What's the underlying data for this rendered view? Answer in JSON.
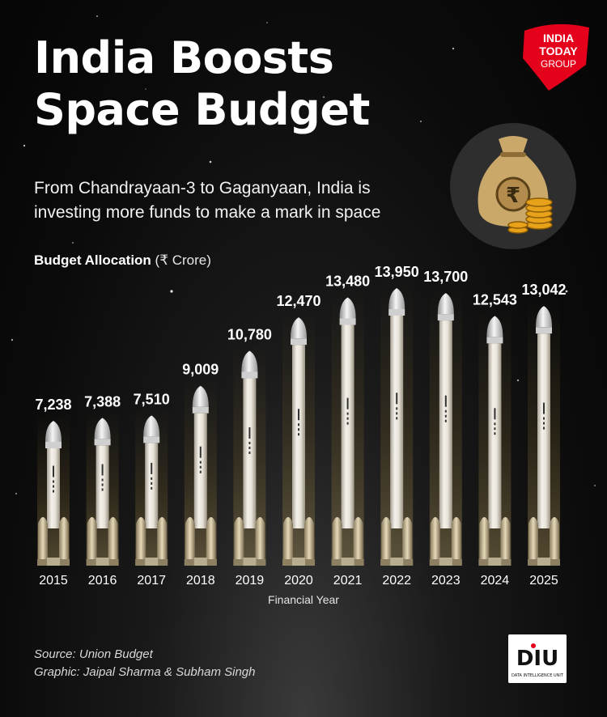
{
  "header": {
    "title_line1": "India Boosts",
    "title_line2": "Space Budget",
    "subtitle_line1": "From Chandrayaan-3 to Gaganyaan, India is",
    "subtitle_line2": "investing more funds to make a mark in space",
    "allocation_label": "Budget Allocation",
    "allocation_unit": "(₹ Crore)"
  },
  "logo": {
    "line1": "INDIA",
    "line2": "TODAY",
    "line3": "GROUP",
    "color": "#e5001c"
  },
  "illustration": {
    "icon": "money-bag-icon",
    "symbol": "₹"
  },
  "chart_data": {
    "type": "bar",
    "xlabel": "Financial Year",
    "ylabel": "Budget Allocation (₹ Crore)",
    "categories": [
      "2015",
      "2016",
      "2017",
      "2018",
      "2019",
      "2020",
      "2021",
      "2022",
      "2023",
      "2024",
      "2025"
    ],
    "values": [
      7238,
      7388,
      7510,
      9009,
      10780,
      12470,
      13480,
      13950,
      13700,
      12543,
      13042
    ],
    "value_labels": [
      "7,238",
      "7,388",
      "7,510",
      "9,009",
      "10,780",
      "12,470",
      "13,480",
      "13,950",
      "13,700",
      "12,543",
      "13,042"
    ],
    "bar_style": "rocket",
    "grid": false
  },
  "footer": {
    "source": "Source: Union Budget",
    "credit": "Graphic: Jaipal Sharma & Subham Singh",
    "badge": "DIU",
    "badge_sub": "DATA INTELLIGENCE UNIT"
  }
}
